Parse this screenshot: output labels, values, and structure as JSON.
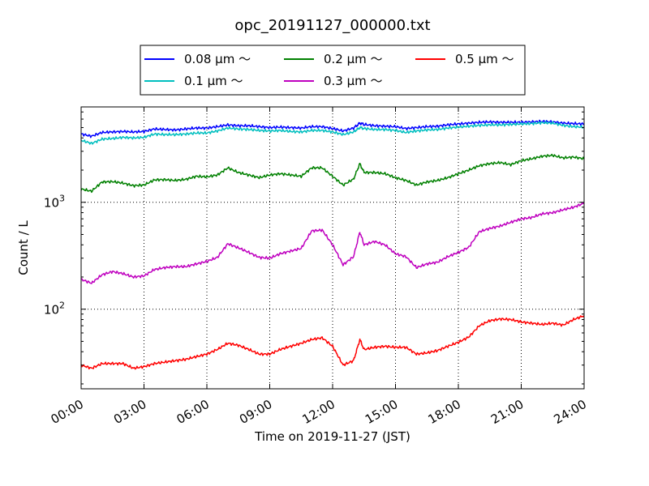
{
  "chart_data": {
    "type": "line",
    "title": "opc_20191127_000000.txt",
    "xlabel": "Time on 2019-11-27 (JST)",
    "ylabel": "Count / L",
    "yscale": "log",
    "xlim_hours": [
      0,
      24
    ],
    "ylim": [
      18,
      7800
    ],
    "grid": "dotted",
    "legend_position": "top-center",
    "x_tick_labels": [
      "00:00",
      "03:00",
      "06:00",
      "09:00",
      "12:00",
      "15:00",
      "18:00",
      "21:00",
      "24:00"
    ],
    "y_tick_labels": [
      {
        "value": 100,
        "base": "10",
        "exp": "2"
      },
      {
        "value": 1000,
        "base": "10",
        "exp": "3"
      }
    ],
    "x_hours": [
      0,
      0.5,
      1,
      1.5,
      2,
      2.5,
      3,
      3.5,
      4,
      4.5,
      5,
      5.5,
      6,
      6.5,
      7,
      7.5,
      8,
      8.5,
      9,
      9.5,
      10,
      10.5,
      11,
      11.5,
      12,
      12.5,
      13,
      13.3,
      13.5,
      14,
      14.5,
      15,
      15.5,
      16,
      16.5,
      17,
      17.5,
      18,
      18.5,
      19,
      19.5,
      20,
      20.5,
      21,
      21.5,
      22,
      22.5,
      23,
      23.5,
      24
    ],
    "series": [
      {
        "name": "0.08 μm ～",
        "color": "#0000ff",
        "values": [
          4350,
          4150,
          4500,
          4550,
          4600,
          4550,
          4600,
          4850,
          4800,
          4750,
          4850,
          4950,
          4950,
          5100,
          5300,
          5200,
          5200,
          5100,
          5000,
          5050,
          5000,
          4950,
          5100,
          5100,
          4900,
          4650,
          4950,
          5500,
          5350,
          5200,
          5150,
          5100,
          4900,
          5000,
          5100,
          5150,
          5300,
          5400,
          5500,
          5600,
          5650,
          5600,
          5600,
          5600,
          5650,
          5700,
          5650,
          5500,
          5450,
          5400
        ]
      },
      {
        "name": "0.1 μm ～",
        "color": "#00bfbf",
        "values": [
          3800,
          3550,
          3900,
          3950,
          4050,
          4000,
          4050,
          4350,
          4300,
          4300,
          4350,
          4450,
          4450,
          4650,
          4950,
          4850,
          4800,
          4700,
          4650,
          4700,
          4600,
          4550,
          4700,
          4700,
          4550,
          4300,
          4550,
          5000,
          4900,
          4800,
          4800,
          4700,
          4500,
          4650,
          4750,
          4800,
          4950,
          5050,
          5150,
          5250,
          5300,
          5300,
          5350,
          5400,
          5450,
          5550,
          5500,
          5250,
          5100,
          5050
        ]
      },
      {
        "name": "0.2 μm ～",
        "color": "#008000",
        "values": [
          1330,
          1270,
          1550,
          1560,
          1510,
          1430,
          1450,
          1620,
          1630,
          1600,
          1640,
          1750,
          1730,
          1800,
          2100,
          1900,
          1800,
          1700,
          1800,
          1850,
          1800,
          1750,
          2100,
          2100,
          1750,
          1450,
          1650,
          2300,
          1900,
          1900,
          1850,
          1700,
          1600,
          1450,
          1550,
          1600,
          1700,
          1850,
          2000,
          2200,
          2300,
          2350,
          2250,
          2450,
          2550,
          2700,
          2750,
          2600,
          2650,
          2550
        ]
      },
      {
        "name": "0.3 μm ～",
        "color": "#bf00bf",
        "values": [
          190,
          175,
          210,
          225,
          215,
          200,
          205,
          235,
          245,
          250,
          250,
          265,
          280,
          305,
          410,
          375,
          340,
          305,
          300,
          330,
          350,
          370,
          540,
          550,
          400,
          260,
          310,
          530,
          400,
          430,
          400,
          330,
          310,
          245,
          265,
          275,
          310,
          340,
          380,
          530,
          570,
          600,
          650,
          700,
          720,
          780,
          800,
          850,
          900,
          980
        ]
      },
      {
        "name": "0.5 μm ～",
        "color": "#ff0000",
        "values": [
          30,
          28,
          31,
          31,
          31,
          28,
          29,
          31,
          32,
          33,
          34,
          36,
          38,
          42,
          48,
          46,
          42,
          38,
          38,
          42,
          45,
          48,
          52,
          54,
          45,
          30,
          33,
          52,
          42,
          44,
          45,
          44,
          44,
          38,
          39,
          41,
          45,
          49,
          55,
          70,
          78,
          81,
          80,
          76,
          74,
          72,
          74,
          71,
          80,
          87
        ]
      }
    ]
  }
}
